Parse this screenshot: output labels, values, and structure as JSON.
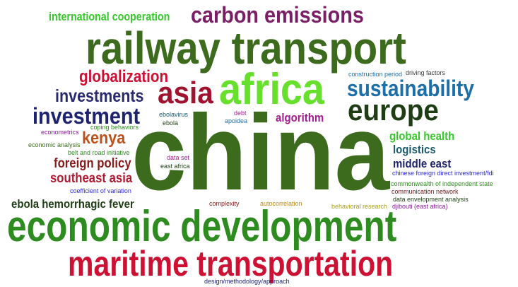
{
  "palette": {
    "dark_green": "#3d6b1e",
    "green": "#2e8b1f",
    "lime": "#66e02c",
    "crimson": "#cc1133",
    "purple": "#7a1f66",
    "navy": "#1f2470",
    "teal_blue": "#1c6fa8",
    "brown_orange": "#c0501a"
  },
  "words": [
    {
      "id": "china",
      "text": "china",
      "color": "#3d6b1e"
    },
    {
      "id": "railway-transport",
      "text": "railway transport",
      "color": "#3d6b1e"
    },
    {
      "id": "economic-development",
      "text": "economic development",
      "color": "#2e8b1f"
    },
    {
      "id": "maritime-transportation",
      "text": "maritime transportation",
      "color": "#cc1133"
    },
    {
      "id": "africa",
      "text": "africa",
      "color": "#66e02c"
    },
    {
      "id": "carbon-emissions",
      "text": "carbon emissions",
      "color": "#7a1f66"
    },
    {
      "id": "asia",
      "text": "asia",
      "color": "#a1122e"
    },
    {
      "id": "europe",
      "text": "europe",
      "color": "#1e3d14"
    },
    {
      "id": "sustainability",
      "text": "sustainability",
      "color": "#1c6fa8"
    },
    {
      "id": "investment",
      "text": "investment",
      "color": "#1f2470"
    },
    {
      "id": "investments",
      "text": "investments",
      "color": "#2a2a6e"
    },
    {
      "id": "globalization",
      "text": "globalization",
      "color": "#cc1133"
    },
    {
      "id": "international-cooperation",
      "text": "international cooperation",
      "color": "#36c92a"
    },
    {
      "id": "kenya",
      "text": "kenya",
      "color": "#c0501a"
    },
    {
      "id": "foreign-policy",
      "text": "foreign policy",
      "color": "#8a1a1a"
    },
    {
      "id": "southeast-asia",
      "text": "southeast asia",
      "color": "#b01a30"
    },
    {
      "id": "ebola-hemorrhagic-fever",
      "text": "ebola hemorrhagic fever",
      "color": "#1e3d14"
    },
    {
      "id": "algorithm",
      "text": "algorithm",
      "color": "#a31c8f"
    },
    {
      "id": "global-health",
      "text": "global health",
      "color": "#36c92a"
    },
    {
      "id": "logistics",
      "text": "logistics",
      "color": "#1c5a6e"
    },
    {
      "id": "middle-east",
      "text": "middle east",
      "color": "#1f2470"
    },
    {
      "id": "construction-period",
      "text": "construction period",
      "color": "#1c6fa8"
    },
    {
      "id": "driving-factors",
      "text": "driving factors",
      "color": "#3a3a3a"
    },
    {
      "id": "ebolavirus",
      "text": "ebolavirus",
      "color": "#1c5a6e"
    },
    {
      "id": "ebola",
      "text": "ebola",
      "color": "#1e3d14"
    },
    {
      "id": "debt",
      "text": "debt",
      "color": "#b01a9a"
    },
    {
      "id": "apoidea",
      "text": "apoidea",
      "color": "#1c6fa8"
    },
    {
      "id": "econometrics",
      "text": "econometrics",
      "color": "#8a1a9a"
    },
    {
      "id": "coping-behaviors",
      "text": "coping behaviors",
      "color": "#2e8b1f"
    },
    {
      "id": "economic-analysis",
      "text": "economic analysis",
      "color": "#3d6b1e"
    },
    {
      "id": "belt-and-road-initiative",
      "text": "belt and road initiative",
      "color": "#2e8b1f"
    },
    {
      "id": "data-set",
      "text": "data set",
      "color": "#a31c8f"
    },
    {
      "id": "east-africa",
      "text": "east africa",
      "color": "#1e3d14"
    },
    {
      "id": "coefficient-of-variation",
      "text": "coefficient of variation",
      "color": "#2a2ad0"
    },
    {
      "id": "chinese-fdi",
      "text": "chinese foreign direct investment/fdi",
      "color": "#2a2ad0"
    },
    {
      "id": "commonwealth",
      "text": "commonwealth of independent state",
      "color": "#2e8b1f"
    },
    {
      "id": "communication-network",
      "text": "communication network",
      "color": "#6a1a1a"
    },
    {
      "id": "data-envelopment-analysis",
      "text": "data envelopment analysis",
      "color": "#1e3d14"
    },
    {
      "id": "complexity",
      "text": "complexity",
      "color": "#8a1a1a"
    },
    {
      "id": "autocorrelation",
      "text": "autocorrelation",
      "color": "#c08a1a"
    },
    {
      "id": "behavioral-research",
      "text": "behavioral research",
      "color": "#a8a01a"
    },
    {
      "id": "djibouti",
      "text": "djibouti (east africa)",
      "color": "#8a1a9a"
    },
    {
      "id": "design-methodology",
      "text": "design/methodology/approach",
      "color": "#1f2470"
    }
  ]
}
